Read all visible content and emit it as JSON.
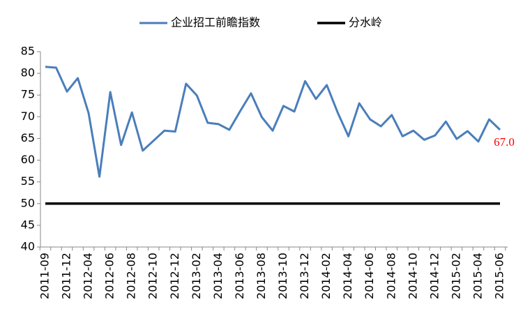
{
  "chart_data": {
    "type": "line",
    "categories": [
      "2011-09",
      null,
      "2011-12",
      null,
      "2012-04",
      null,
      "2012-06",
      null,
      "2012-08",
      null,
      "2012-10",
      null,
      "2012-12",
      null,
      "2013-02",
      null,
      "2013-04",
      null,
      "2013-06",
      null,
      "2013-08",
      null,
      "2013-10",
      null,
      "2013-12",
      null,
      "2014-02",
      null,
      "2014-04",
      null,
      "2014-06",
      null,
      "2014-08",
      null,
      "2014-10",
      null,
      "2014-12",
      null,
      "2015-02",
      null,
      "2015-04",
      null,
      "2015-06"
    ],
    "series": [
      {
        "name": "企业招工前瞻指数",
        "color": "#4a7ebb",
        "values": [
          81.5,
          81.3,
          75.8,
          78.9,
          70.8,
          56.2,
          75.7,
          63.5,
          71.0,
          62.2,
          64.5,
          66.8,
          66.6,
          77.6,
          74.9,
          68.6,
          68.3,
          67.0,
          71.3,
          75.4,
          69.9,
          66.8,
          72.5,
          71.2,
          78.2,
          74.1,
          77.3,
          71.0,
          65.5,
          73.1,
          69.4,
          67.8,
          70.4,
          65.5,
          66.8,
          64.7,
          65.7,
          68.9,
          64.9,
          66.7,
          64.3,
          69.4,
          67.0
        ],
        "value_labels": [
          null,
          null,
          null,
          null,
          null,
          null,
          null,
          null,
          null,
          null,
          null,
          null,
          null,
          null,
          null,
          null,
          null,
          null,
          null,
          null,
          null,
          null,
          null,
          null,
          null,
          null,
          null,
          null,
          null,
          null,
          null,
          null,
          null,
          null,
          null,
          null,
          null,
          null,
          null,
          null,
          null,
          null,
          "67.0"
        ],
        "value_label_color": "#ff0000"
      },
      {
        "name": "分水岭",
        "color": "#000000",
        "values": [
          50,
          50,
          50,
          50,
          50,
          50,
          50,
          50,
          50,
          50,
          50,
          50,
          50,
          50,
          50,
          50,
          50,
          50,
          50,
          50,
          50,
          50,
          50,
          50,
          50,
          50,
          50,
          50,
          50,
          50,
          50,
          50,
          50,
          50,
          50,
          50,
          50,
          50,
          50,
          50,
          50,
          50,
          50
        ]
      }
    ],
    "ylim": [
      40,
      85
    ],
    "yticks": [
      40,
      45,
      50,
      55,
      60,
      65,
      70,
      75,
      80,
      85
    ],
    "grid": false,
    "legend": "top"
  }
}
